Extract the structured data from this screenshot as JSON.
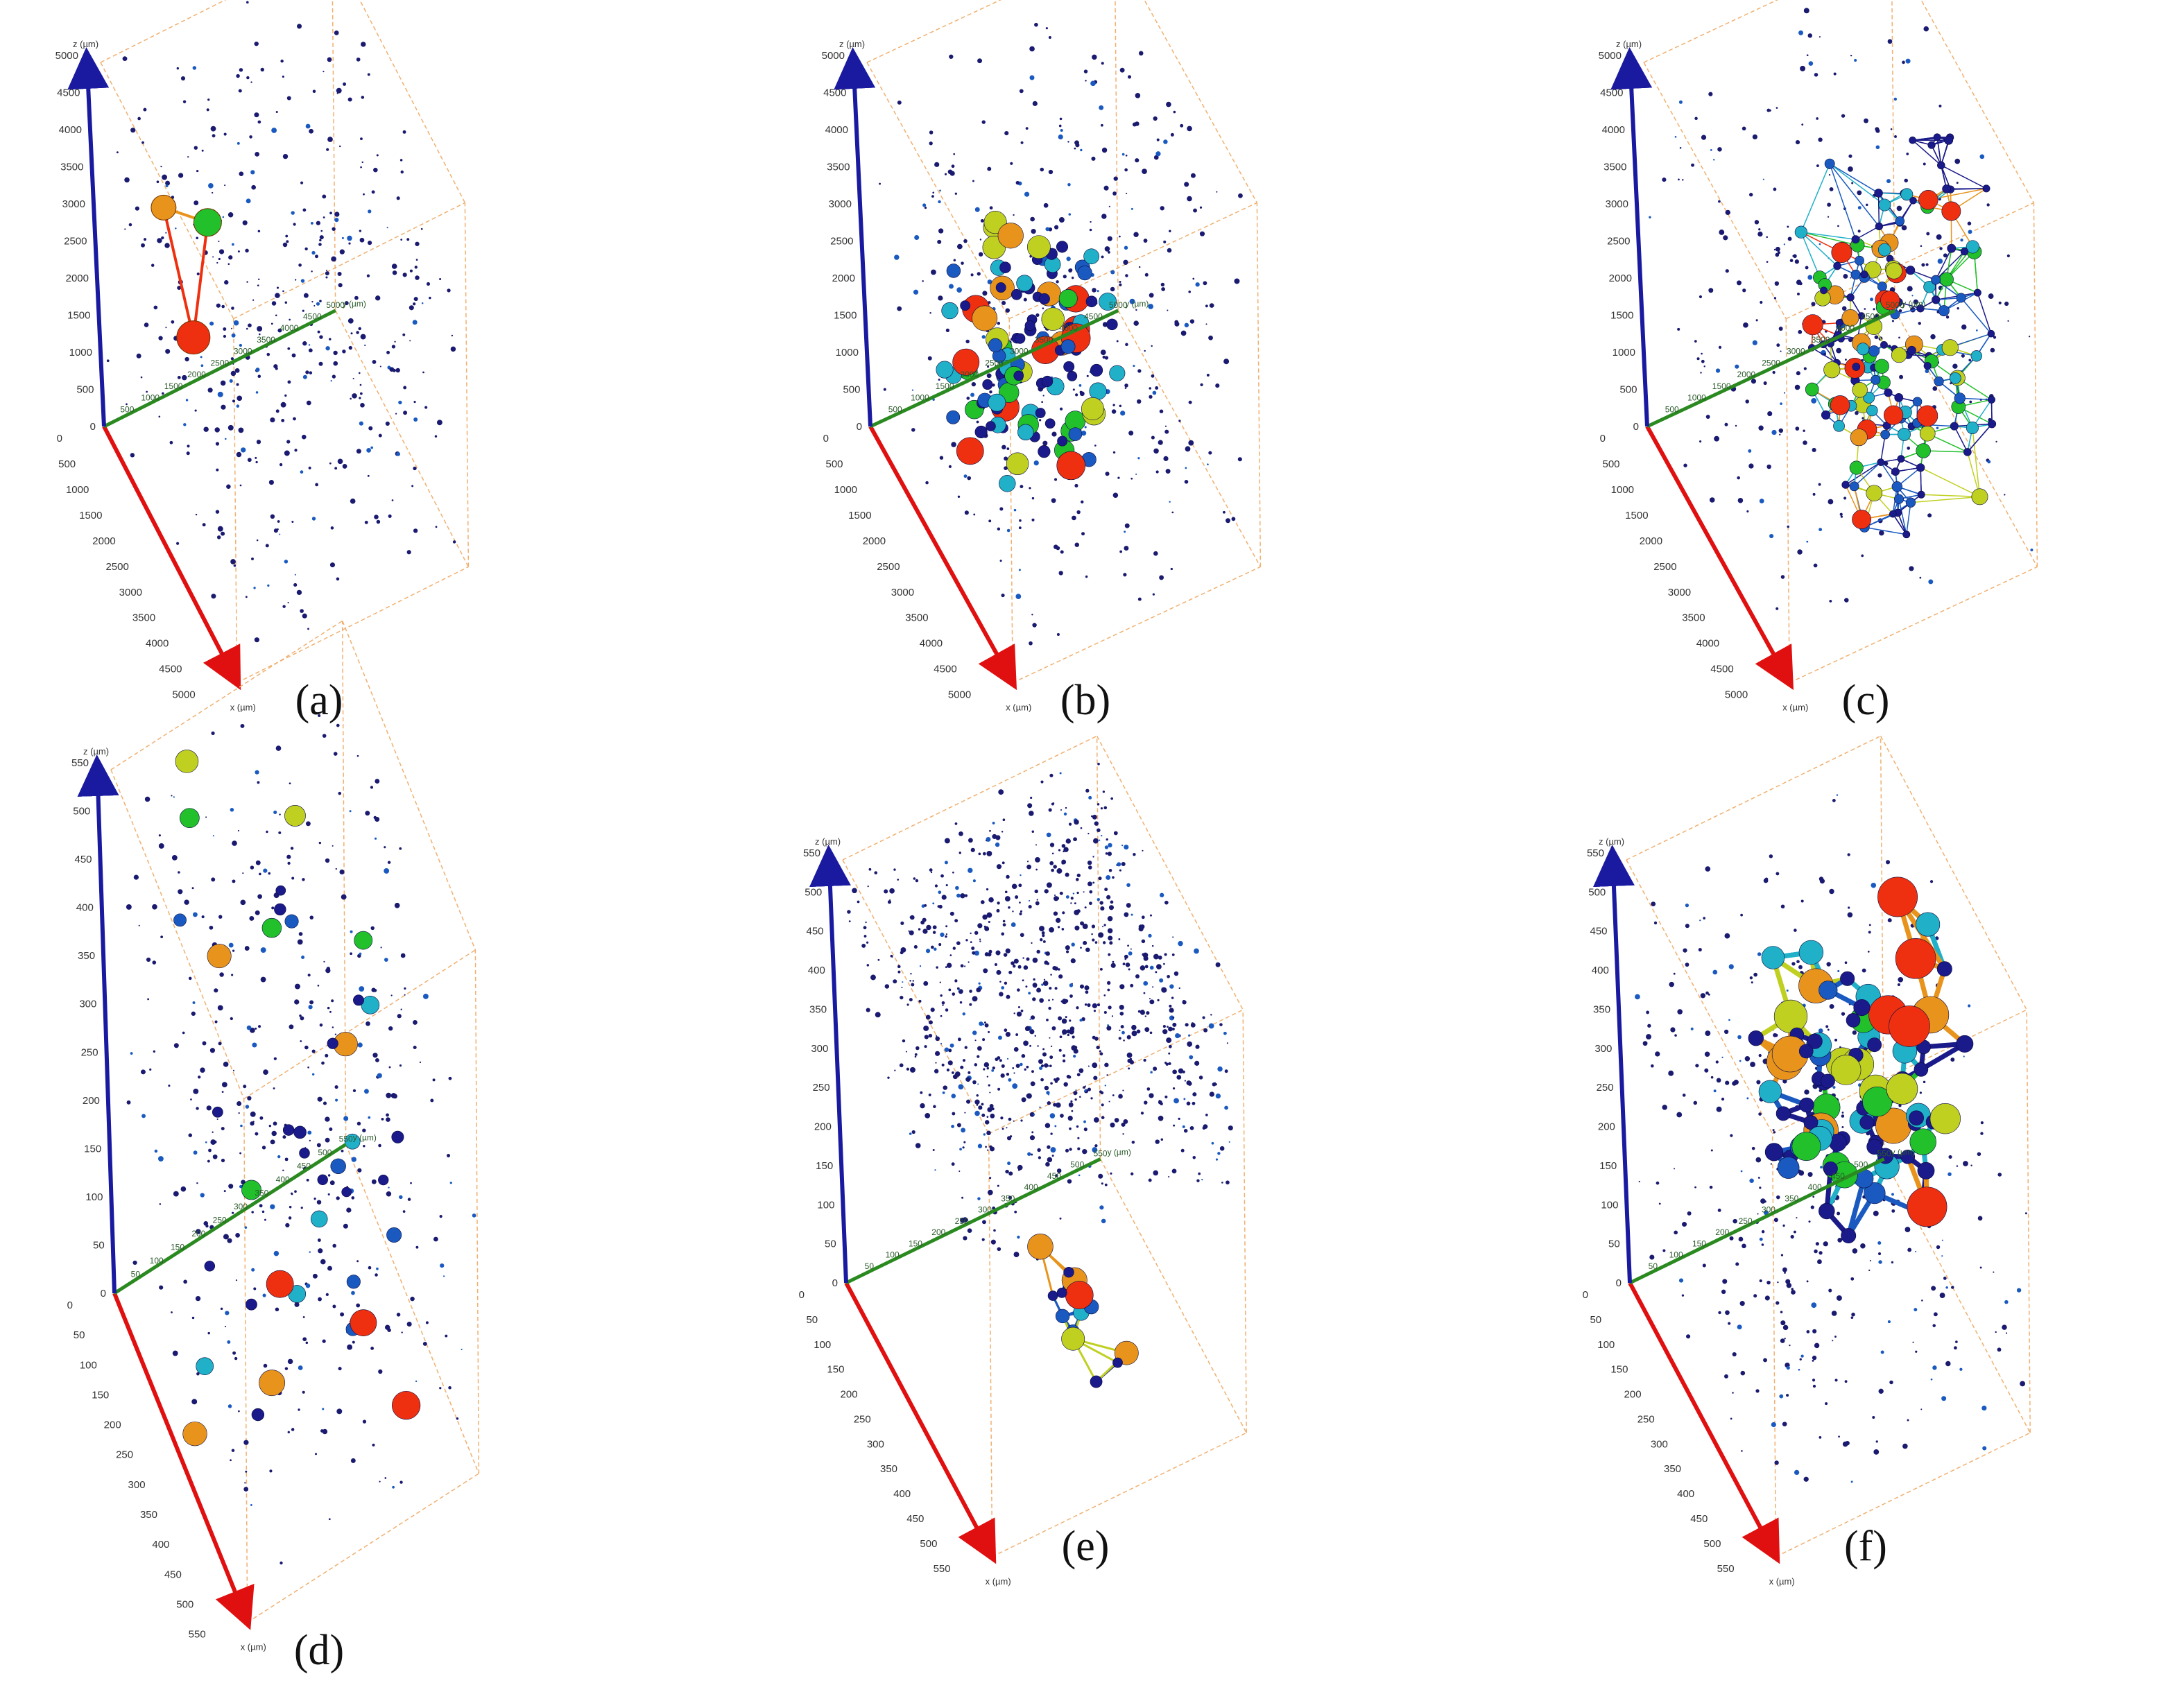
{
  "figure": {
    "panels": [
      {
        "id": "a",
        "label": "(a)",
        "axes": {
          "x_title": "x (µm)",
          "y_title": "y (µm)",
          "z_title": "z (µm)",
          "x_ticks": [
            "0",
            "500",
            "1000",
            "1500",
            "2000",
            "2500",
            "3000",
            "3500",
            "4000",
            "4500",
            "5000"
          ],
          "y_ticks": [
            "500",
            "1000",
            "1500",
            "2000",
            "2500",
            "3000",
            "3500",
            "4000",
            "4500",
            "5000"
          ],
          "z_ticks": [
            "0",
            "500",
            "1000",
            "1500",
            "2000",
            "2500",
            "3000",
            "3500",
            "4000",
            "4500",
            "5000"
          ]
        },
        "network": {
          "nodes": [
            {
              "name": "green",
              "color": "#22c02a",
              "r": 20,
              "u": 0.8,
              "v": 0.55
            },
            {
              "name": "orange",
              "color": "#e8941c",
              "r": 18,
              "u": 0.46,
              "v": 0.59
            },
            {
              "name": "red",
              "color": "#ee3010",
              "r": 24,
              "u": 0.69,
              "v": 0.24
            }
          ],
          "edges": [
            [
              0,
              1
            ],
            [
              1,
              2
            ],
            [
              0,
              2
            ]
          ]
        },
        "density": "sparse"
      },
      {
        "id": "b",
        "label": "(b)",
        "axes": {
          "x_title": "x (µm)",
          "y_title": "y (µm)",
          "z_title": "z (µm)",
          "x_ticks": [
            "0",
            "500",
            "1000",
            "1500",
            "2000",
            "2500",
            "3000",
            "3500",
            "4000",
            "4500",
            "5000"
          ],
          "y_ticks": [
            "500",
            "1000",
            "1500",
            "2000",
            "2500",
            "3000",
            "3500",
            "4000",
            "4500",
            "5000"
          ],
          "z_ticks": [
            "0",
            "500",
            "1000",
            "1500",
            "2000",
            "2500",
            "3000",
            "3500",
            "4000",
            "4500",
            "5000"
          ]
        },
        "density": "clustered"
      },
      {
        "id": "c",
        "label": "(c)",
        "axes": {
          "x_title": "x (µm)",
          "y_title": "y (µm)",
          "z_title": "z (µm)",
          "x_ticks": [
            "0",
            "500",
            "1000",
            "1500",
            "2000",
            "2500",
            "3000",
            "3500",
            "4000",
            "4500",
            "5000"
          ],
          "y_ticks": [
            "500",
            "1000",
            "1500",
            "2000",
            "2500",
            "3000",
            "3500",
            "4000",
            "4500",
            "5000"
          ],
          "z_ticks": [
            "0",
            "500",
            "1000",
            "1500",
            "2000",
            "2500",
            "3000",
            "3500",
            "4000",
            "4500",
            "5000"
          ]
        },
        "density": "dense-network"
      },
      {
        "id": "d",
        "label": "(d)",
        "axes": {
          "x_title": "x (µm)",
          "y_title": "y (µm)",
          "z_title": "z (µm)",
          "x_ticks": [
            "0",
            "50",
            "100",
            "150",
            "200",
            "250",
            "300",
            "350",
            "400",
            "450",
            "500",
            "550"
          ],
          "y_ticks": [
            "50",
            "100",
            "150",
            "200",
            "250",
            "300",
            "350",
            "400",
            "450",
            "500",
            "550"
          ],
          "z_ticks": [
            "0",
            "50",
            "100",
            "150",
            "200",
            "250",
            "300",
            "350",
            "400",
            "450",
            "500",
            "550"
          ]
        },
        "density": "sparse-cluster"
      },
      {
        "id": "e",
        "label": "(e)",
        "axes": {
          "x_title": "x (µm)",
          "y_title": "y (µm)",
          "z_title": "z (µm)",
          "x_ticks": [
            "0",
            "50",
            "100",
            "150",
            "200",
            "250",
            "300",
            "350",
            "400",
            "450",
            "500",
            "550"
          ],
          "y_ticks": [
            "50",
            "100",
            "150",
            "200",
            "250",
            "300",
            "350",
            "400",
            "450",
            "500",
            "550"
          ],
          "z_ticks": [
            "0",
            "50",
            "100",
            "150",
            "200",
            "250",
            "300",
            "350",
            "400",
            "450",
            "500",
            "550"
          ]
        },
        "density": "top-dense"
      },
      {
        "id": "f",
        "label": "(f)",
        "axes": {
          "x_title": "x (µm)",
          "y_title": "y (µm)",
          "z_title": "z (µm)",
          "x_ticks": [
            "0",
            "50",
            "100",
            "150",
            "200",
            "250",
            "300",
            "350",
            "400",
            "450",
            "500",
            "550"
          ],
          "y_ticks": [
            "50",
            "100",
            "150",
            "200",
            "250",
            "300",
            "350",
            "400",
            "450",
            "500",
            "550"
          ],
          "z_ticks": [
            "0",
            "50",
            "100",
            "150",
            "200",
            "250",
            "300",
            "350",
            "400",
            "450",
            "500",
            "550"
          ]
        },
        "density": "thick-network"
      }
    ],
    "colors": {
      "x_axis": "#e01010",
      "y_axis": "#2a8a20",
      "z_axis": "#1a1aa0",
      "box": "#f0b070",
      "node_scale": [
        "#1a1a8a",
        "#1a5ac0",
        "#20b0c8",
        "#22c02a",
        "#c0d020",
        "#e8941c",
        "#ee3010"
      ]
    }
  }
}
